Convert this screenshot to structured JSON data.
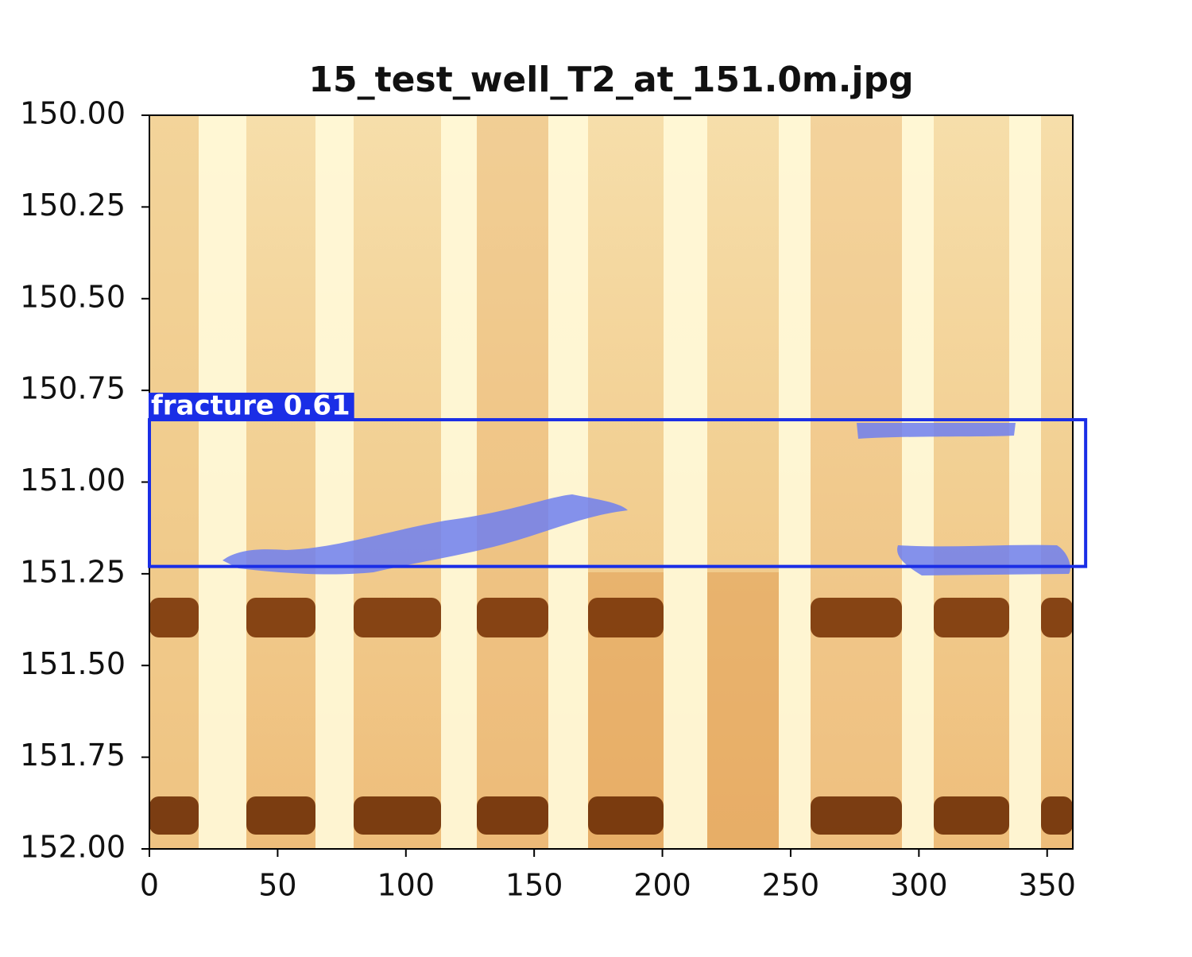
{
  "chart_data": {
    "type": "image",
    "title": "15_test_well_T2_at_151.0m.jpg",
    "xlim": [
      0,
      360
    ],
    "xticks": [
      0,
      50,
      100,
      150,
      200,
      250,
      300,
      350
    ],
    "ylim": [
      152,
      150
    ],
    "yticks": [
      {
        "value": 150,
        "label": "150.00"
      },
      {
        "value": 150.25,
        "label": "150.25"
      },
      {
        "value": 150.5,
        "label": "150.50"
      },
      {
        "value": 150.75,
        "label": "150.75"
      },
      {
        "value": 151,
        "label": "151.00"
      },
      {
        "value": 151.25,
        "label": "151.25"
      },
      {
        "value": 151.5,
        "label": "151.50"
      },
      {
        "value": 151.75,
        "label": "151.75"
      },
      {
        "value": 152,
        "label": "152.00"
      }
    ],
    "detections": [
      {
        "label": "fracture 0.61",
        "color": "#1a2ee6",
        "x": [
          0,
          365
        ],
        "y": [
          150.83,
          151.23
        ]
      }
    ]
  }
}
